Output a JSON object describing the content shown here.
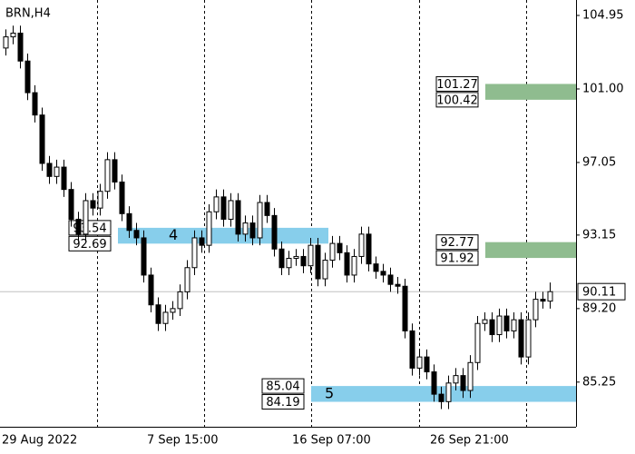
{
  "chart_data": {
    "type": "candlestick",
    "title": "BRN,H4",
    "categories": [
      "29 Aug 2022",
      null,
      null,
      null,
      null,
      null,
      null,
      null,
      null,
      null,
      null,
      null,
      null,
      null,
      null,
      null,
      null,
      null,
      null,
      null,
      "7 Sep 15:00",
      null,
      null,
      null,
      null,
      null,
      null,
      null,
      null,
      null,
      null,
      null,
      null,
      null,
      null,
      null,
      null,
      null,
      null,
      null,
      "16 Sep 07:00",
      null,
      null,
      null,
      null,
      null,
      null,
      null,
      null,
      null,
      null,
      null,
      null,
      null,
      null,
      null,
      null,
      null,
      null,
      "26 Sep 21:00",
      null,
      null,
      null,
      null,
      null,
      null,
      null,
      null,
      null,
      null,
      null,
      null,
      null,
      null,
      null,
      null
    ],
    "open": [
      103.2,
      103.8,
      104.0,
      102.5,
      100.8,
      99.6,
      97.0,
      96.3,
      96.8,
      95.6,
      94.0,
      93.2,
      95.0,
      94.6,
      95.5,
      97.2,
      96.0,
      94.3,
      93.4,
      93.0,
      91.0,
      89.4,
      88.4,
      89.0,
      89.2,
      90.1,
      91.4,
      93.0,
      92.6,
      94.4,
      95.2,
      94.0,
      95.0,
      93.2,
      93.8,
      93.0,
      94.9,
      94.2,
      92.4,
      91.4,
      91.9,
      92.0,
      91.5,
      92.6,
      90.8,
      91.8,
      92.7,
      92.2,
      91.0,
      92.0,
      93.2,
      91.6,
      91.2,
      91.0,
      90.5,
      90.4,
      88.0,
      86.0,
      86.6,
      85.8,
      84.6,
      84.2,
      85.2,
      85.6,
      84.8,
      86.3,
      88.4,
      88.6,
      87.8,
      88.8,
      88.0,
      88.6,
      86.6,
      88.6,
      89.7,
      89.6
    ],
    "high": [
      104.2,
      104.4,
      104.4,
      102.9,
      101.2,
      100.0,
      97.4,
      97.2,
      97.2,
      96.0,
      94.4,
      95.4,
      95.4,
      95.9,
      97.6,
      97.6,
      96.4,
      94.7,
      93.8,
      93.4,
      91.4,
      89.8,
      89.4,
      89.6,
      90.5,
      91.8,
      93.4,
      93.4,
      94.8,
      95.6,
      95.6,
      95.4,
      95.4,
      94.2,
      94.2,
      95.3,
      95.3,
      94.6,
      92.8,
      92.3,
      92.4,
      92.4,
      93.0,
      93.0,
      92.2,
      93.1,
      93.1,
      92.6,
      92.4,
      93.6,
      93.6,
      92.0,
      91.6,
      91.4,
      90.9,
      90.8,
      88.4,
      87.0,
      87.0,
      86.2,
      85.0,
      85.6,
      86.0,
      86.0,
      86.7,
      88.8,
      89.0,
      89.0,
      89.2,
      89.2,
      89.0,
      89.0,
      89.0,
      90.1,
      90.1,
      90.6
    ],
    "low": [
      102.8,
      103.4,
      102.1,
      100.4,
      99.2,
      96.6,
      95.9,
      95.9,
      95.2,
      93.6,
      92.8,
      92.8,
      94.2,
      94.2,
      95.1,
      95.6,
      93.9,
      93.0,
      92.6,
      90.6,
      89.0,
      88.0,
      88.0,
      88.6,
      88.8,
      89.7,
      91.0,
      92.2,
      92.2,
      94.0,
      93.6,
      93.6,
      92.8,
      92.8,
      92.6,
      92.6,
      93.8,
      92.0,
      91.0,
      91.0,
      91.5,
      91.1,
      91.1,
      90.4,
      90.4,
      91.4,
      91.8,
      90.6,
      90.6,
      91.6,
      91.2,
      90.8,
      90.6,
      90.1,
      90.0,
      87.6,
      85.6,
      85.6,
      85.4,
      84.2,
      83.8,
      83.8,
      84.8,
      84.4,
      84.4,
      85.9,
      88.0,
      87.4,
      87.4,
      87.6,
      87.6,
      86.2,
      86.2,
      88.2,
      89.2,
      89.2
    ],
    "close": [
      103.8,
      104.0,
      102.5,
      100.8,
      99.6,
      97.0,
      96.3,
      96.8,
      95.6,
      94.0,
      93.2,
      95.0,
      94.6,
      95.5,
      97.2,
      96.0,
      94.3,
      93.4,
      93.0,
      91.0,
      89.4,
      88.4,
      89.0,
      89.2,
      90.1,
      91.4,
      93.0,
      92.6,
      94.4,
      95.2,
      94.0,
      95.0,
      93.2,
      93.8,
      93.0,
      94.9,
      94.2,
      92.4,
      91.4,
      91.9,
      92.0,
      91.5,
      92.6,
      90.8,
      91.8,
      92.7,
      92.2,
      91.0,
      92.0,
      93.2,
      91.6,
      91.2,
      91.0,
      90.5,
      90.4,
      88.0,
      86.0,
      86.6,
      85.8,
      84.6,
      84.2,
      85.2,
      85.6,
      84.8,
      86.3,
      88.4,
      88.6,
      87.8,
      88.8,
      88.0,
      88.6,
      86.6,
      88.6,
      89.7,
      89.6,
      90.11
    ],
    "up_color": "#ffffff",
    "down_color": "#000000",
    "edge_color": "#000000",
    "current_price": 90.11,
    "zones": [
      {
        "high": 93.54,
        "low": 92.69,
        "label": "4",
        "color": "#87ceeb"
      },
      {
        "high": 85.04,
        "low": 84.19,
        "label": "5",
        "color": "#87ceeb"
      },
      {
        "high": 101.27,
        "low": 100.42,
        "color": "#8fbc8f"
      },
      {
        "high": 92.77,
        "low": 91.92,
        "color": "#8fbc8f"
      }
    ],
    "ylim": [
      82.85,
      105.78
    ],
    "yticks": [
      104.95,
      {
        "value": 101,
        "label": "101.00"
      },
      97.05,
      93.15,
      {
        "value": 89.2,
        "label": "89.20"
      },
      85.25
    ]
  }
}
